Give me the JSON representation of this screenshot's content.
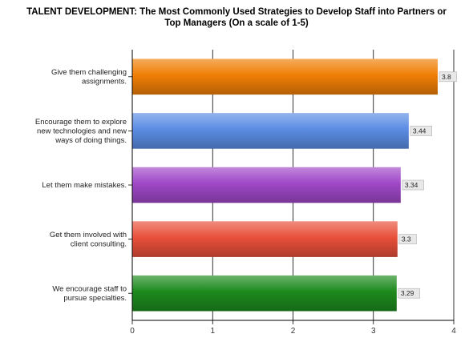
{
  "chart_data": {
    "type": "bar",
    "orientation": "horizontal",
    "title_lines": [
      "TALENT DEVELOPMENT: The Most Commonly Used Strategies to Develop Staff into Partners or",
      "Top Managers (On a scale of 1-5)"
    ],
    "categories": [
      [
        "Give them challenging",
        "assignments."
      ],
      [
        "Encourage them to explore",
        "new technologies and new",
        "ways of doing things."
      ],
      [
        "Let them make mistakes."
      ],
      [
        "Get them involved with",
        "client consulting."
      ],
      [
        "We encourage staff to",
        "pursue specialties."
      ]
    ],
    "values": [
      3.8,
      3.44,
      3.34,
      3.3,
      3.29
    ],
    "value_labels": [
      "3.8",
      "3.44",
      "3.34",
      "3.3",
      "3.29"
    ],
    "colors": [
      "#f07f06",
      "#5b8de4",
      "#a048c8",
      "#e8503a",
      "#1d8a1d"
    ],
    "xlim": [
      0,
      4
    ],
    "xticks": [
      "0",
      "1",
      "2",
      "3",
      "4"
    ],
    "grid": true,
    "legend": "none"
  }
}
